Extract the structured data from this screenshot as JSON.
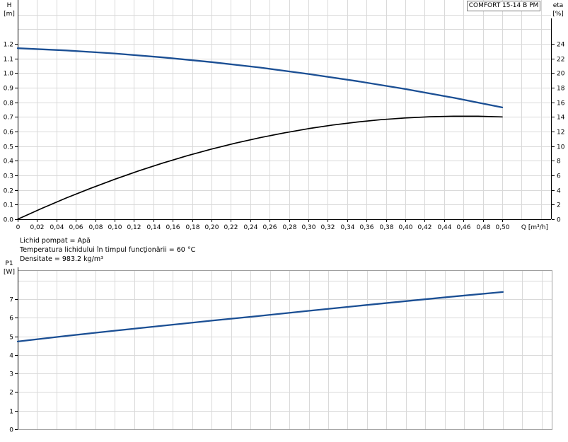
{
  "colors": {
    "blue": "#1b4f94",
    "black": "#000000",
    "grid": "#d9d9d9",
    "axis": "#000000",
    "frame": "#a0a0a0",
    "text": "#000000",
    "box_border": "#7a7a7a"
  },
  "annotations": {
    "lines": [
      "Lichid pompat = Apă",
      "Temperatura lichidului în timpul funcţionării = 60 °C",
      "Densitate = 983.2 kg/m³"
    ]
  },
  "chart_data": [
    {
      "type": "line",
      "title": "COMFORT 15-14 B PM",
      "xlabel": "Q [m³/h]",
      "ylabel_left": "H [m]",
      "ylabel_left_lines": [
        "H",
        "[m]"
      ],
      "ylabel_right": "eta [%]",
      "ylabel_right_lines": [
        "eta",
        "[%]"
      ],
      "xlim": [
        0,
        0.5504
      ],
      "ylim_left": [
        0,
        1.5
      ],
      "ylim_right": [
        0,
        30
      ],
      "grid": true,
      "x_grid_step": 0.02,
      "y_left_grid_step": 0.1,
      "x_tick_step": 0.02,
      "x_tick_labels": [
        "0",
        "0,02",
        "0,04",
        "0,06",
        "0,08",
        "0,10",
        "0,12",
        "0,14",
        "0,16",
        "0,18",
        "0,20",
        "0,22",
        "0,24",
        "0,26",
        "0,28",
        "0,30",
        "0,32",
        "0,34",
        "0,36",
        "0,38",
        "0,40",
        "0,42",
        "0,44",
        "0,46",
        "0,48",
        "0,50"
      ],
      "y_left_tick_labels": [
        "0.0",
        "0.1",
        "0.2",
        "0.3",
        "0.4",
        "0.5",
        "0.6",
        "0.7",
        "0.8",
        "0.9",
        "1.0",
        "1.1",
        "1.2"
      ],
      "y_right_tick_labels": [
        "0",
        "2",
        "4",
        "6",
        "8",
        "10",
        "12",
        "14",
        "16",
        "18",
        "20",
        "22",
        "24"
      ],
      "series": [
        {
          "name": "head-curve",
          "axis": "left",
          "color_key": "blue",
          "width": 2.3,
          "x": [
            0,
            0.05,
            0.1,
            0.15,
            0.2,
            0.25,
            0.3,
            0.35,
            0.4,
            0.45,
            0.5
          ],
          "y": [
            1.17,
            1.155,
            1.134,
            1.107,
            1.075,
            1.038,
            0.994,
            0.945,
            0.891,
            0.831,
            0.765
          ]
        },
        {
          "name": "efficiency-curve",
          "axis": "right",
          "color_key": "black",
          "width": 1.7,
          "x": [
            0,
            0.025,
            0.05,
            0.075,
            0.1,
            0.125,
            0.15,
            0.175,
            0.2,
            0.225,
            0.25,
            0.275,
            0.3,
            0.325,
            0.35,
            0.375,
            0.4,
            0.425,
            0.45,
            0.475,
            0.5
          ],
          "y": [
            0,
            1.49,
            2.9,
            4.22,
            5.46,
            6.62,
            7.7,
            8.69,
            9.6,
            10.42,
            11.16,
            11.82,
            12.4,
            12.89,
            13.3,
            13.63,
            13.86,
            14.02,
            14.1,
            14.09,
            14.0
          ]
        }
      ]
    },
    {
      "type": "line",
      "title": "",
      "xlabel": "",
      "ylabel_left": "P1 [W]",
      "ylabel_left_lines": [
        "P1",
        "[W]"
      ],
      "xlim": [
        0,
        0.5504
      ],
      "ylim_left": [
        0,
        8.556
      ],
      "grid": true,
      "x_grid_step": 0.02,
      "y_left_grid_step": 1,
      "x_tick_labels": [],
      "y_left_tick_labels": [
        "0",
        "1",
        "2",
        "3",
        "4",
        "5",
        "6",
        "7"
      ],
      "series": [
        {
          "name": "power-curve",
          "axis": "left",
          "color_key": "blue",
          "width": 2.3,
          "x": [
            0,
            0.05,
            0.1,
            0.15,
            0.2,
            0.25,
            0.3,
            0.35,
            0.4,
            0.45,
            0.5
          ],
          "y": [
            4.72,
            5.02,
            5.3,
            5.57,
            5.84,
            6.1,
            6.37,
            6.63,
            6.89,
            7.14,
            7.38
          ]
        }
      ]
    }
  ]
}
